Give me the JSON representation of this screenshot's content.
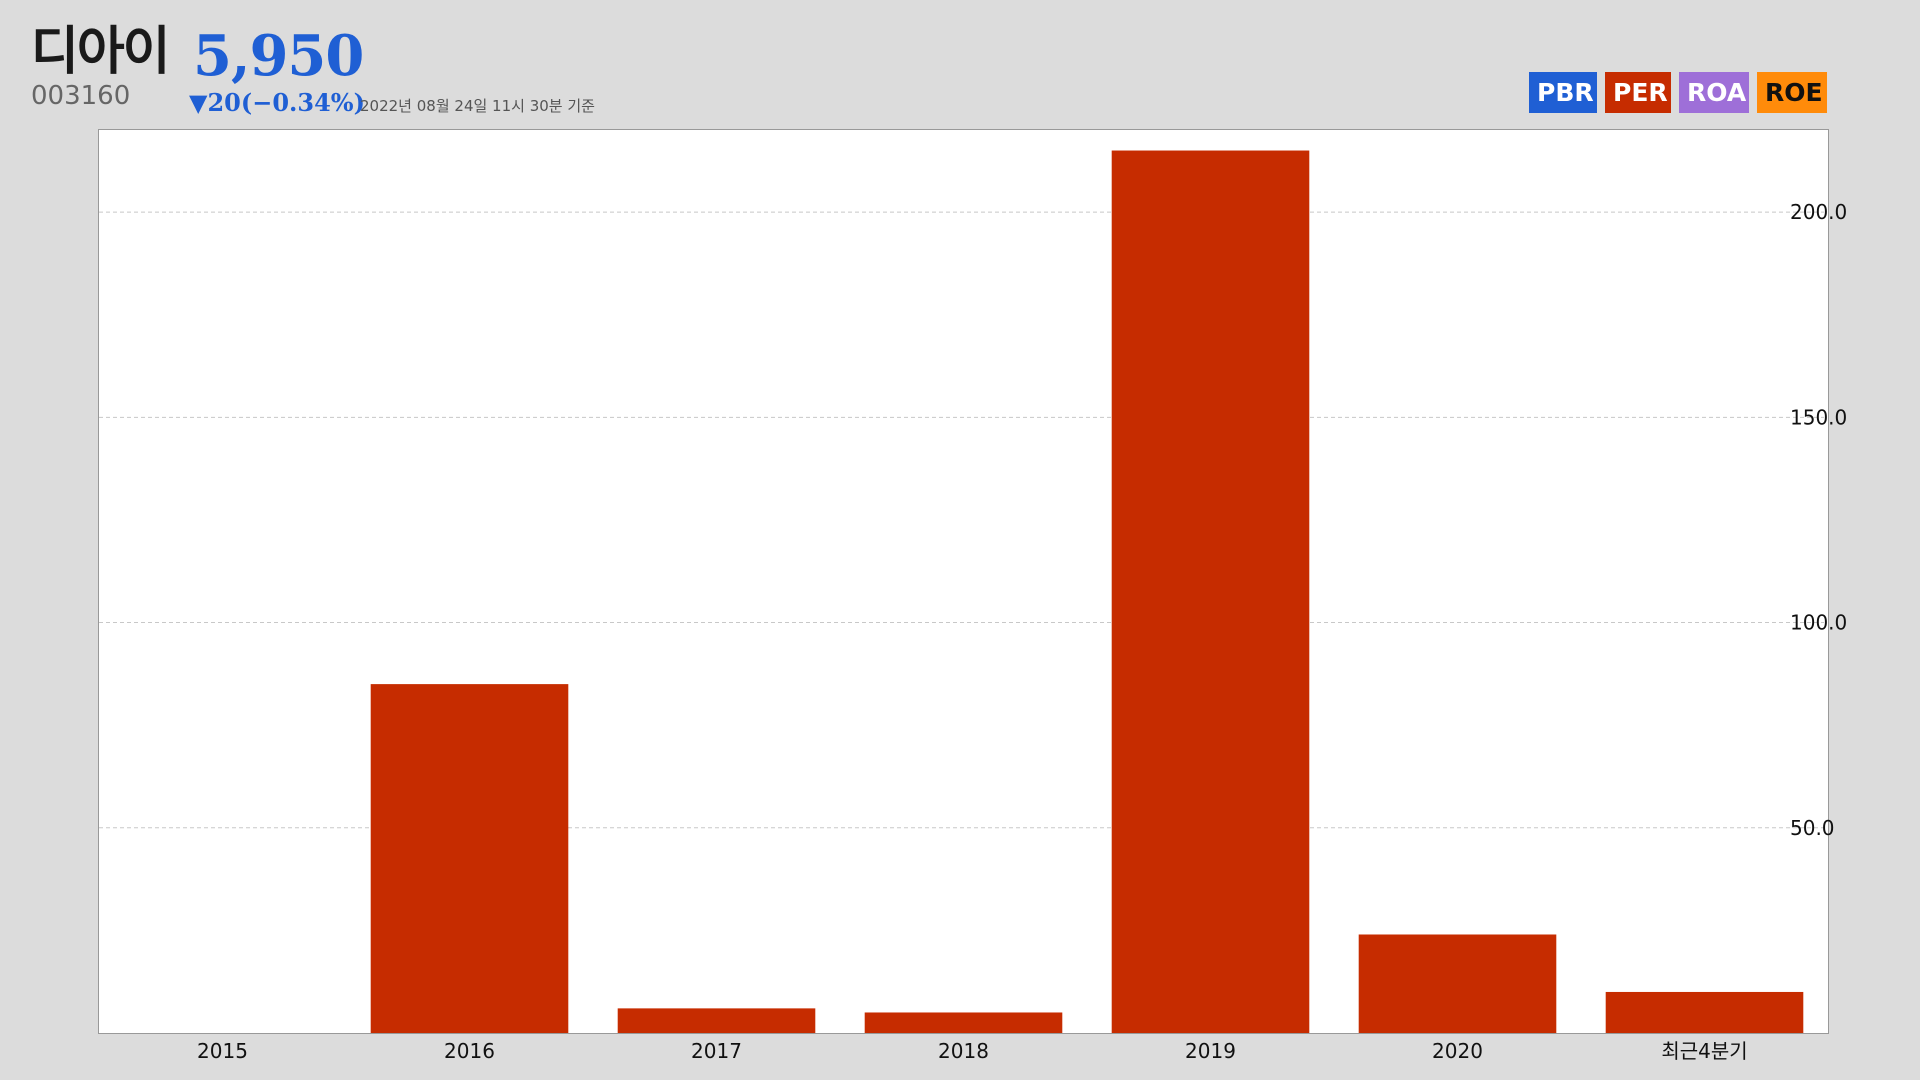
{
  "header": {
    "name": "디아이",
    "price": "5,950",
    "code": "003160",
    "change": "▼20(−0.34%)",
    "date": "2022년 08월 24일 11시 30분 기준"
  },
  "tabs": [
    {
      "label": "PBR",
      "color": "#1f5fd4"
    },
    {
      "label": "PER",
      "color": "#c62c00"
    },
    {
      "label": "ROA",
      "color": "#9e6fd8"
    },
    {
      "label": "ROE",
      "color": "#ff8b0a"
    }
  ],
  "chart_data": {
    "type": "bar",
    "categories": [
      "2015",
      "2016",
      "2017",
      "2018",
      "2019",
      "2020",
      "최근4분기"
    ],
    "values": [
      0,
      85,
      6,
      5,
      215,
      24,
      10
    ],
    "bar_color": "#c62c00",
    "ylim": [
      0,
      220
    ],
    "yticks": [
      50,
      100,
      150,
      200
    ],
    "ytick_labels": [
      "50.0",
      "100.0",
      "150.0",
      "200.0"
    ],
    "y_axis_side": "right",
    "grid": "horizontal dashed",
    "title": "",
    "xlabel": "",
    "ylabel": ""
  }
}
